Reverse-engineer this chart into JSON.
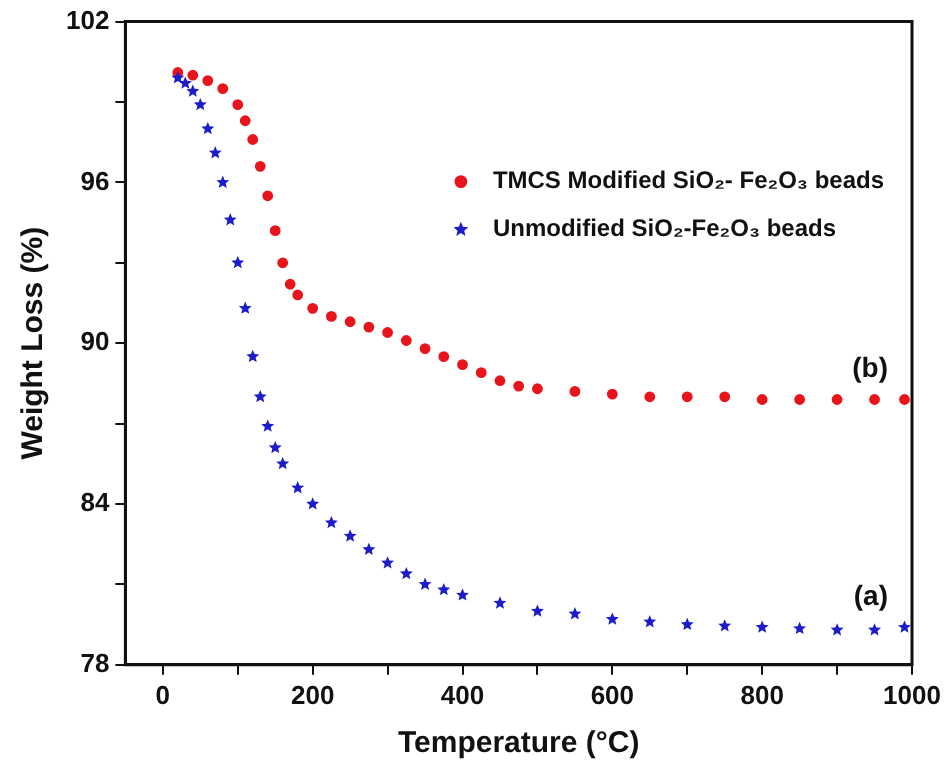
{
  "chart_data": {
    "type": "scatter",
    "xlabel": "Temperature (°C)",
    "ylabel": "Weight Loss (%)",
    "xlim": [
      -50,
      1000
    ],
    "xticks": [
      0,
      {
        "value": 100,
        "label": null
      },
      200,
      {
        "value": 300,
        "label": null
      },
      400,
      {
        "value": 500,
        "label": null
      },
      600,
      {
        "value": 700,
        "label": null
      },
      800,
      {
        "value": 900,
        "label": null
      },
      1000
    ],
    "ylim": [
      78,
      102
    ],
    "yticks": [
      78,
      {
        "value": 81,
        "label": null
      },
      84,
      {
        "value": 87,
        "label": null
      },
      90,
      {
        "value": 93,
        "label": null
      },
      96,
      {
        "value": 99,
        "label": null
      },
      102
    ],
    "grid": false,
    "legend": "top right",
    "series": [
      {
        "name": "TMCS Modified SiO₂- Fe₂O₃ beads",
        "color": "#e8141c",
        "marker": "circle",
        "x": [
          20,
          40,
          60,
          80,
          100,
          110,
          120,
          130,
          140,
          150,
          160,
          170,
          180,
          200,
          225,
          250,
          275,
          300,
          325,
          350,
          375,
          400,
          425,
          450,
          475,
          500,
          550,
          600,
          650,
          700,
          750,
          800,
          850,
          900,
          950,
          990
        ],
        "values": [
          100.1,
          100.0,
          99.8,
          99.5,
          98.9,
          98.3,
          97.6,
          96.6,
          95.5,
          94.2,
          93.0,
          92.2,
          91.8,
          91.3,
          91.0,
          90.8,
          90.6,
          90.4,
          90.1,
          89.8,
          89.5,
          89.2,
          88.9,
          88.6,
          88.4,
          88.3,
          88.2,
          88.1,
          88.0,
          88.0,
          88.0,
          87.9,
          87.9,
          87.9,
          87.9,
          87.9
        ]
      },
      {
        "name": "Unmodified SiO₂-Fe₂O₃ beads",
        "color": "#1c1cc8",
        "marker": "star",
        "x": [
          20,
          30,
          40,
          50,
          60,
          70,
          80,
          90,
          100,
          110,
          120,
          130,
          140,
          150,
          160,
          180,
          200,
          225,
          250,
          275,
          300,
          325,
          350,
          375,
          400,
          450,
          500,
          550,
          600,
          650,
          700,
          750,
          800,
          850,
          900,
          950,
          990
        ],
        "values": [
          99.9,
          99.7,
          99.4,
          98.9,
          98.0,
          97.1,
          96.0,
          94.6,
          93.0,
          91.3,
          89.5,
          88.0,
          86.9,
          86.1,
          85.5,
          84.6,
          84.0,
          83.3,
          82.8,
          82.3,
          81.8,
          81.4,
          81.0,
          80.8,
          80.6,
          80.3,
          80.0,
          79.9,
          79.7,
          79.6,
          79.5,
          79.45,
          79.4,
          79.35,
          79.3,
          79.3,
          79.4
        ]
      }
    ],
    "annotations": [
      "(b)",
      "(a)"
    ]
  }
}
